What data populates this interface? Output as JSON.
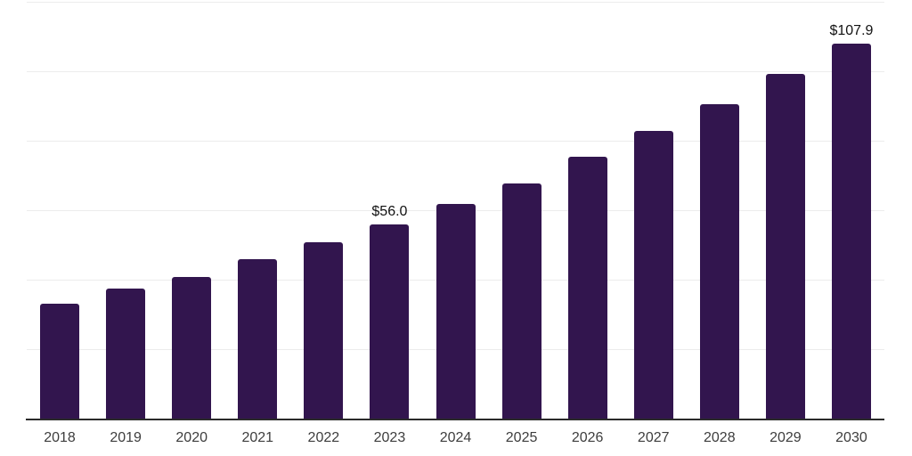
{
  "chart_data": {
    "type": "bar",
    "title": "",
    "xlabel": "",
    "ylabel": "",
    "categories": [
      "2018",
      "2019",
      "2020",
      "2021",
      "2022",
      "2023",
      "2024",
      "2025",
      "2026",
      "2027",
      "2028",
      "2029",
      "2030"
    ],
    "values": [
      33.1,
      37.4,
      40.8,
      45.9,
      50.8,
      56.0,
      61.8,
      67.7,
      75.4,
      82.8,
      90.5,
      99.2,
      107.9
    ],
    "point_labels": [
      "",
      "",
      "",
      "",
      "",
      "$56.0",
      "",
      "",
      "",
      "",
      "",
      "",
      "$107.9"
    ],
    "ylim": [
      0,
      120
    ],
    "grid_step": 20,
    "grid": "horizontal-only",
    "legend": "none",
    "y_axis_tick_labels": "none",
    "bar_color": "#32154e",
    "grid_color": "#ececec",
    "axis_line_color": "#2b2b2b",
    "tick_label_color": "#3d3d3d",
    "value_label_color": "#121212"
  }
}
